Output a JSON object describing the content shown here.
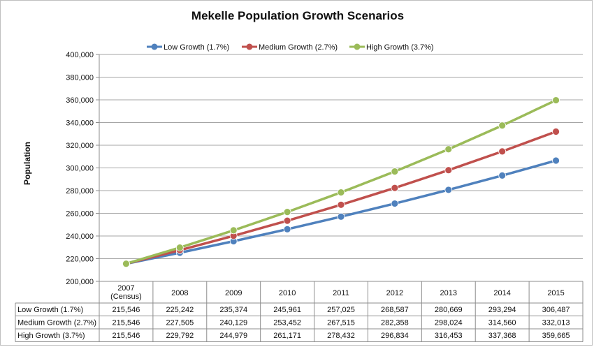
{
  "chart_data": {
    "type": "line",
    "title": "Mekelle Population Growth Scenarios",
    "ylabel": "Population",
    "xlabel": "",
    "ylim": [
      200000,
      400000
    ],
    "yticks": [
      200000,
      220000,
      240000,
      260000,
      280000,
      300000,
      320000,
      340000,
      360000,
      380000,
      400000
    ],
    "ytick_labels": [
      "200,000",
      "220,000",
      "240,000",
      "260,000",
      "280,000",
      "300,000",
      "320,000",
      "340,000",
      "360,000",
      "380,000",
      "400,000"
    ],
    "categories": [
      "2007 (Census)",
      "2008",
      "2009",
      "2010",
      "2011",
      "2012",
      "2013",
      "2014",
      "2015"
    ],
    "category_lines": [
      [
        "2007",
        "(Census)"
      ],
      [
        "2008"
      ],
      [
        "2009"
      ],
      [
        "2010"
      ],
      [
        "2011"
      ],
      [
        "2012"
      ],
      [
        "2013"
      ],
      [
        "2014"
      ],
      [
        "2015"
      ]
    ],
    "grid": true,
    "legend_position": "top",
    "series": [
      {
        "name": "Low Growth (1.7%)",
        "color": "#4f81bd",
        "values": [
          215546,
          225242,
          235374,
          245961,
          257025,
          268587,
          280669,
          293294,
          306487
        ],
        "labels": [
          "215,546",
          "225,242",
          "235,374",
          "245,961",
          "257,025",
          "268,587",
          "280,669",
          "293,294",
          "306,487"
        ]
      },
      {
        "name": "Medium Growth (2.7%)",
        "color": "#c0504d",
        "values": [
          215546,
          227505,
          240129,
          253452,
          267515,
          282358,
          298024,
          314560,
          332013
        ],
        "labels": [
          "215,546",
          "227,505",
          "240,129",
          "253,452",
          "267,515",
          "282,358",
          "298,024",
          "314,560",
          "332,013"
        ]
      },
      {
        "name": "High Growth (3.7%)",
        "color": "#9bbb59",
        "values": [
          215546,
          229792,
          244979,
          261171,
          278432,
          296834,
          316453,
          337368,
          359665
        ],
        "labels": [
          "215,546",
          "229,792",
          "244,979",
          "261,171",
          "278,432",
          "296,834",
          "316,453",
          "337,368",
          "359,665"
        ]
      }
    ]
  }
}
